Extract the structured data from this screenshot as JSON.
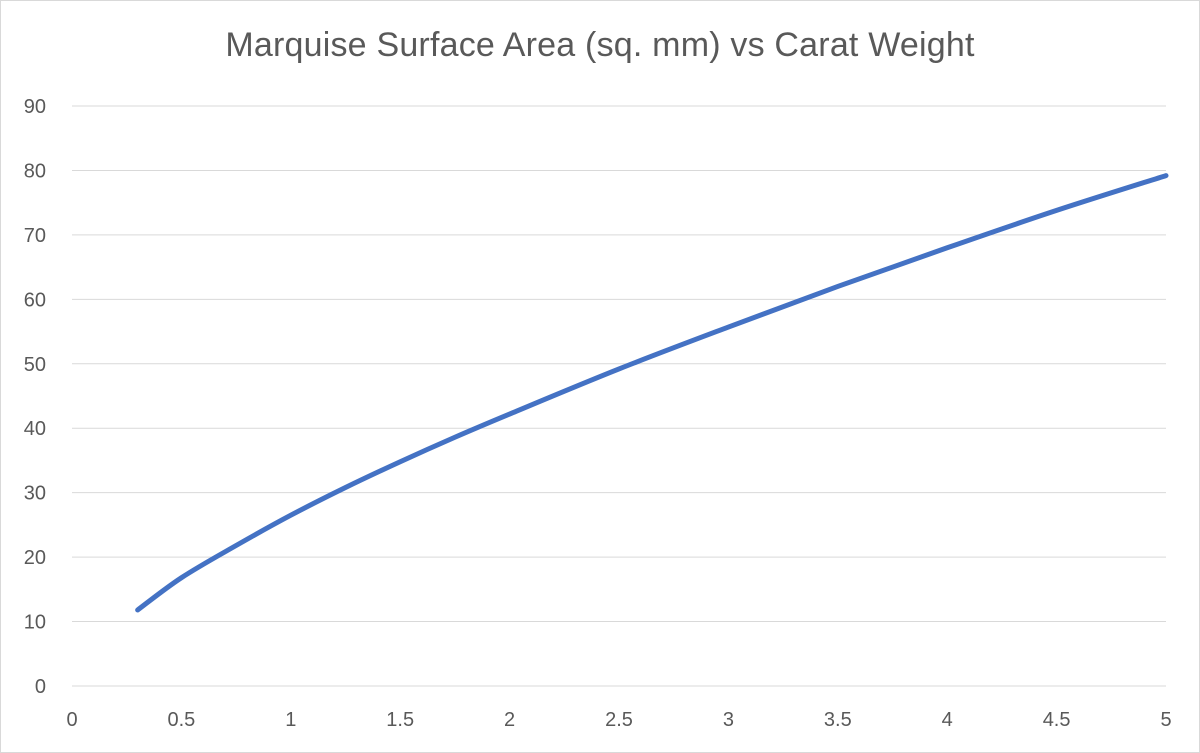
{
  "chart_data": {
    "type": "line",
    "title": "Marquise Surface Area (sq. mm) vs Carat Weight",
    "xlabel": "",
    "ylabel": "",
    "xlim": [
      0,
      5
    ],
    "ylim": [
      0,
      90
    ],
    "x_ticks": [
      "0",
      "0.5",
      "1",
      "1.5",
      "2",
      "2.5",
      "3",
      "3.5",
      "4",
      "4.5",
      "5"
    ],
    "y_ticks": [
      "0",
      "10",
      "20",
      "30",
      "40",
      "50",
      "60",
      "70",
      "80",
      "90"
    ],
    "grid": "horizontal",
    "legend": "none",
    "series": [
      {
        "color": "#4472c4",
        "x": [
          0.3,
          0.5,
          0.75,
          1.0,
          1.25,
          1.5,
          1.75,
          2.0,
          2.5,
          3.0,
          3.5,
          4.0,
          4.5,
          5.0
        ],
        "values": [
          11.8,
          16.8,
          21.8,
          26.5,
          30.8,
          34.8,
          38.6,
          42.2,
          49.2,
          55.7,
          62.0,
          68.0,
          73.8,
          79.2
        ]
      }
    ]
  }
}
